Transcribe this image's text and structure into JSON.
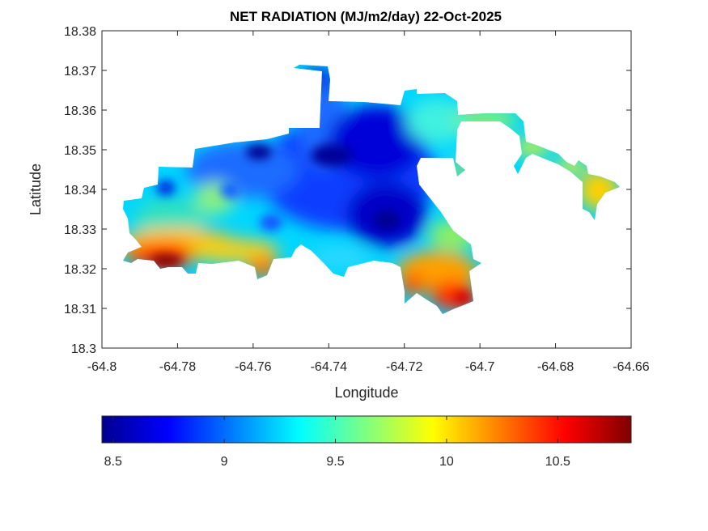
{
  "chart_data": {
    "type": "heatmap",
    "title": "NET RADIATION (MJ/m2/day) 22-Oct-2025",
    "xlabel": "Longitude",
    "ylabel": "Latitude",
    "xlim": [
      -64.8,
      -64.66
    ],
    "ylim": [
      18.3,
      18.38
    ],
    "xticks": [
      -64.8,
      -64.78,
      -64.76,
      -64.74,
      -64.72,
      -64.7,
      -64.68,
      -64.66
    ],
    "xtick_labels": [
      "-64.8",
      "-64.78",
      "-64.76",
      "-64.74",
      "-64.72",
      "-64.7",
      "-64.68",
      "-64.66"
    ],
    "yticks": [
      18.3,
      18.31,
      18.32,
      18.33,
      18.34,
      18.35,
      18.36,
      18.37,
      18.38
    ],
    "ytick_labels": [
      "18.3",
      "18.31",
      "18.32",
      "18.33",
      "18.34",
      "18.35",
      "18.36",
      "18.37",
      "18.38"
    ],
    "colormap": "jet",
    "colorbar": {
      "orientation": "horizontal",
      "placement": "bottom",
      "range": [
        8.45,
        10.83
      ],
      "ticks": [
        8.5,
        9,
        9.5,
        10,
        10.5
      ],
      "tick_labels": [
        "8.5",
        "9",
        "9.5",
        "10",
        "10.5"
      ]
    },
    "grid": false,
    "field_description_points": [
      {
        "lon": -64.735,
        "lat": 18.347,
        "value": 8.6
      },
      {
        "lon": -64.76,
        "lat": 18.349,
        "value": 8.5
      },
      {
        "lon": -64.726,
        "lat": 18.332,
        "value": 8.6
      },
      {
        "lon": -64.744,
        "lat": 18.369,
        "value": 8.8
      },
      {
        "lon": -64.785,
        "lat": 18.321,
        "value": 10.8
      },
      {
        "lon": -64.71,
        "lat": 18.313,
        "value": 10.5
      },
      {
        "lon": -64.668,
        "lat": 18.34,
        "value": 10.1
      },
      {
        "lon": -64.705,
        "lat": 18.357,
        "value": 9.7
      }
    ]
  }
}
